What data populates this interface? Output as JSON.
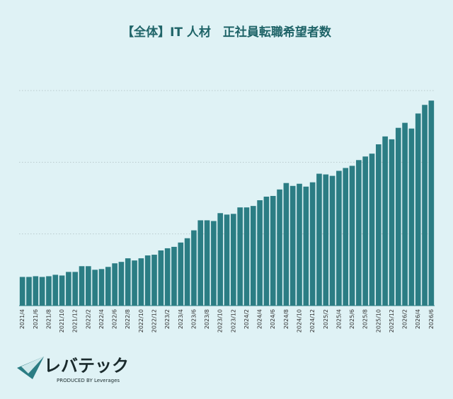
{
  "chart_data": {
    "type": "bar",
    "title": "【全体】IT 人材　正社員転職希望者数",
    "categories": [
      "2021/4",
      null,
      "2021/6",
      null,
      "2021/8",
      null,
      "2021/10",
      null,
      "2021/12",
      null,
      "2022/2",
      null,
      "2022/4",
      null,
      "2022/6",
      null,
      "2022/8",
      null,
      "2022/10",
      null,
      "2022/12",
      null,
      "2023/2",
      null,
      "2023/4",
      null,
      "2023/6",
      null,
      "2023/8",
      null,
      "2023/10",
      null,
      "2023/12",
      null,
      "2024/2",
      null,
      "2024/4",
      null,
      "2024/6",
      null,
      "2024/8",
      null,
      "2024/10",
      null,
      "2024/12",
      null,
      "2025/2",
      null,
      "2025/4",
      null,
      "2025/6",
      null,
      "2025/8",
      null,
      "2025/10",
      null,
      "2025/12",
      null,
      "2026/2",
      null,
      "2026/4",
      null,
      "2026/6"
    ],
    "values": [
      40,
      40,
      41,
      40,
      41,
      43,
      42,
      47,
      47,
      55,
      55,
      50,
      51,
      54,
      59,
      61,
      66,
      63,
      66,
      70,
      71,
      77,
      80,
      82,
      88,
      94,
      105,
      119,
      119,
      118,
      129,
      127,
      128,
      137,
      137,
      139,
      147,
      152,
      153,
      162,
      171,
      167,
      170,
      166,
      172,
      184,
      183,
      181,
      188,
      192,
      195,
      203,
      208,
      212,
      225,
      236,
      232,
      248,
      255,
      247,
      268,
      280,
      286
    ],
    "color": "#2b7d84",
    "ylim": [
      0,
      300
    ],
    "yticks": [
      100,
      200,
      300
    ],
    "grid": true
  },
  "logo": {
    "name": "レバテック",
    "tagline": "PRODUCED BY Leverages"
  }
}
